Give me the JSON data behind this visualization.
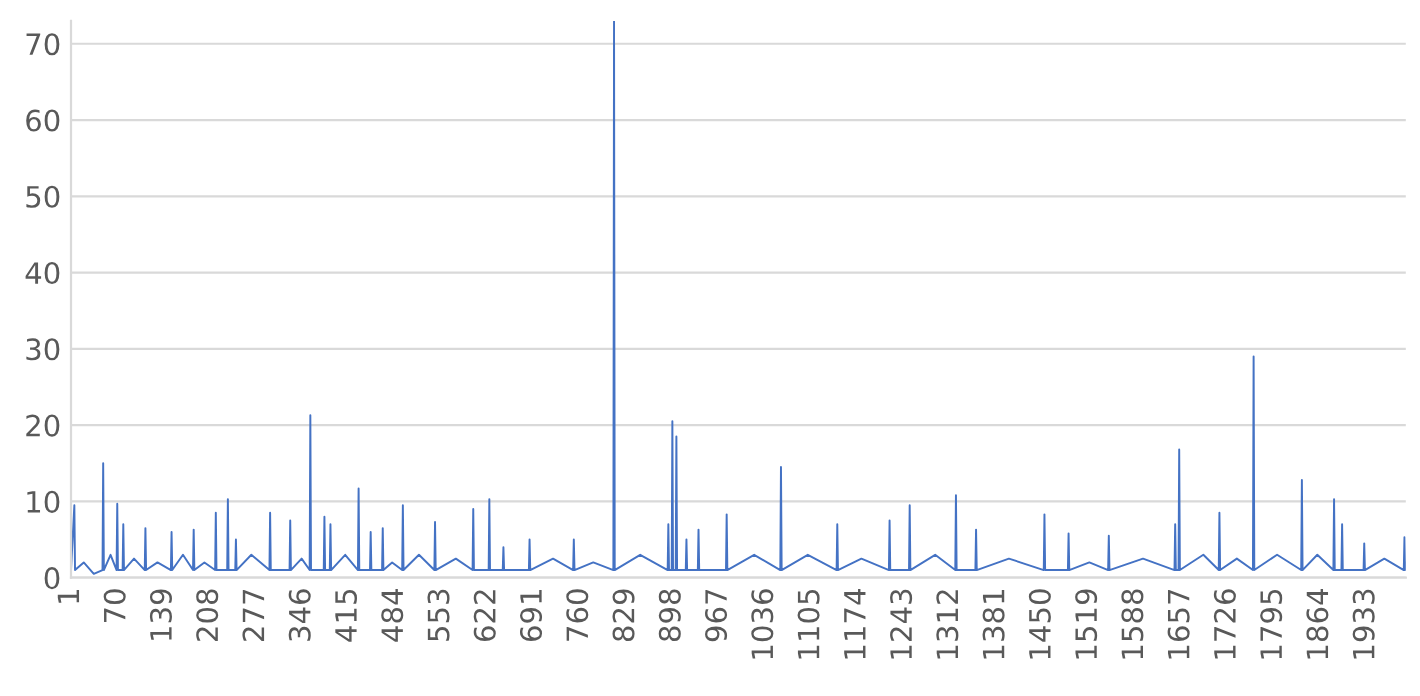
{
  "chart_data": {
    "type": "line",
    "x": [
      1,
      6,
      7,
      20,
      35,
      48,
      49,
      50,
      60,
      69,
      70,
      71,
      78,
      79,
      80,
      95,
      111,
      112,
      113,
      130,
      150,
      151,
      152,
      168,
      183,
      184,
      185,
      200,
      216,
      217,
      218,
      234,
      235,
      236,
      246,
      247,
      248,
      270,
      297,
      298,
      299,
      327,
      328,
      329,
      345,
      357,
      358,
      359,
      378,
      379,
      380,
      387,
      388,
      389,
      410,
      429,
      430,
      431,
      447,
      448,
      449,
      465,
      466,
      467,
      480,
      495,
      496,
      497,
      520,
      543,
      544,
      545,
      575,
      600,
      601,
      602,
      624,
      625,
      626,
      645,
      646,
      647,
      684,
      685,
      686,
      720,
      750,
      751,
      752,
      780,
      810,
      811,
      812,
      850,
      891,
      892,
      893,
      897,
      898,
      899,
      903,
      904,
      905,
      918,
      919,
      920,
      936,
      937,
      938,
      978,
      979,
      980,
      1020,
      1059,
      1060,
      1061,
      1100,
      1143,
      1144,
      1145,
      1180,
      1221,
      1222,
      1223,
      1251,
      1252,
      1253,
      1290,
      1320,
      1321,
      1322,
      1350,
      1351,
      1352,
      1400,
      1452,
      1453,
      1454,
      1488,
      1489,
      1490,
      1520,
      1548,
      1549,
      1550,
      1600,
      1647,
      1648,
      1649,
      1653,
      1654,
      1655,
      1690,
      1713,
      1714,
      1715,
      1740,
      1764,
      1765,
      1766,
      1800,
      1836,
      1837,
      1838,
      1860,
      1884,
      1885,
      1886,
      1896,
      1897,
      1898,
      1929,
      1930,
      1931,
      1960,
      1989,
      1990,
      1991,
      1992
    ],
    "series": [
      {
        "color": "#4472c4",
        "values": [
          1,
          9.5,
          1,
          2,
          0.5,
          1,
          15,
          1,
          3,
          1,
          9.7,
          1,
          1,
          7,
          1,
          2.5,
          1,
          6.5,
          1,
          2,
          1,
          6,
          1,
          3,
          1,
          6.3,
          1,
          2,
          1,
          8.5,
          1,
          1,
          10.3,
          1,
          1,
          5,
          1,
          3,
          1,
          8.5,
          1,
          1,
          7.5,
          1,
          2.5,
          1,
          21.3,
          1,
          1,
          8,
          1,
          1,
          7,
          1,
          3,
          1,
          11.7,
          1,
          1,
          6,
          1,
          1,
          6.5,
          1,
          2,
          1,
          9.5,
          1,
          3,
          1,
          7.3,
          1,
          2.5,
          1,
          9,
          1,
          1,
          10.3,
          1,
          1,
          4,
          1,
          1,
          5,
          1,
          2.5,
          1,
          5,
          1,
          2,
          1,
          73,
          1,
          3,
          1,
          7,
          1,
          1,
          20.5,
          1,
          1,
          18.5,
          1,
          1,
          5,
          1,
          1,
          6.3,
          1,
          1,
          8.3,
          1,
          3,
          1,
          14.5,
          1,
          3,
          1,
          7,
          1,
          2.5,
          1,
          7.5,
          1,
          1,
          9.5,
          1,
          3,
          1,
          10.8,
          1,
          1,
          6.3,
          1,
          2.5,
          1,
          8.3,
          1,
          1,
          5.8,
          1,
          2,
          1,
          5.5,
          1,
          2.5,
          1,
          7,
          1,
          1,
          16.8,
          1,
          3,
          1,
          8.5,
          1,
          2.5,
          1,
          29,
          1,
          3,
          1,
          12.8,
          1,
          3,
          1,
          10.3,
          1,
          1,
          7,
          1,
          1,
          4.5,
          1,
          2.5,
          1,
          5.3,
          1,
          2
        ]
      }
    ],
    "xlim": [
      1,
      1992
    ],
    "xticks": [
      1,
      70,
      139,
      208,
      277,
      346,
      415,
      484,
      553,
      622,
      691,
      760,
      829,
      898,
      967,
      1036,
      1105,
      1174,
      1243,
      1312,
      1381,
      1450,
      1519,
      1588,
      1657,
      1726,
      1795,
      1864,
      1933
    ],
    "ylim": [
      0,
      73
    ],
    "yticks": [
      0,
      10,
      20,
      30,
      40,
      50,
      60,
      70
    ],
    "grid": "y",
    "marker": "none",
    "line_style": "solid"
  }
}
